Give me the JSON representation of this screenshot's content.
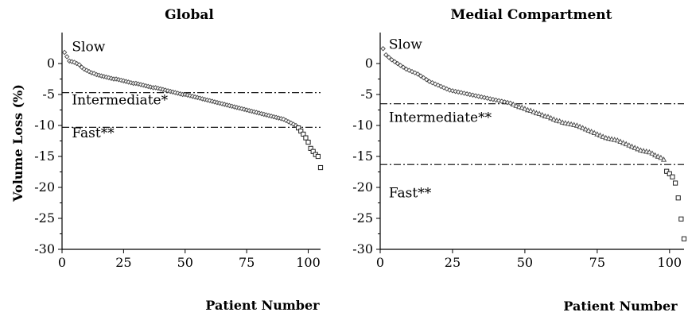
{
  "ylabel": "Volume Loss (%)",
  "chart_data": [
    {
      "type": "scatter",
      "title": "Global",
      "xlabel": "Patient Number",
      "ylabel": "Volume Loss (%)",
      "xlim": [
        0,
        105
      ],
      "ylim": [
        -30,
        5
      ],
      "xticks": [
        0,
        25,
        50,
        75,
        100
      ],
      "yticks": [
        0,
        -5,
        -10,
        -15,
        -20,
        -25,
        -30
      ],
      "thresholds": [
        -4.7,
        -10.3
      ],
      "region_labels": [
        {
          "text": "Slow",
          "x": 4,
          "y": 2
        },
        {
          "text": "Intermediate*",
          "x": 4,
          "y": -6.6
        },
        {
          "text": "Fast**",
          "x": 4,
          "y": -11.9
        }
      ],
      "series": [
        {
          "marker": "diamond",
          "x": [
            1,
            2,
            3,
            4,
            5,
            6,
            7,
            8,
            9,
            10,
            11,
            12,
            13,
            14,
            15,
            16,
            17,
            18,
            19,
            20,
            21,
            22,
            23,
            24,
            25,
            26,
            27,
            28,
            29,
            30,
            31,
            32,
            33,
            34,
            35,
            36,
            37,
            38,
            39,
            40,
            41,
            42,
            43,
            44,
            45,
            46,
            47,
            48,
            49,
            50,
            51,
            52,
            53,
            54,
            55,
            56,
            57,
            58,
            59,
            60,
            61,
            62,
            63,
            64,
            65,
            66,
            67,
            68,
            69,
            70,
            71,
            72,
            73,
            74,
            75,
            76,
            77,
            78,
            79,
            80,
            81,
            82,
            83,
            84,
            85,
            86,
            87,
            88,
            89,
            90,
            91,
            92,
            93,
            94,
            95
          ],
          "y": [
            1.8,
            1.1,
            0.4,
            0.3,
            0.2,
            0.0,
            -0.2,
            -0.6,
            -0.9,
            -1.1,
            -1.3,
            -1.5,
            -1.6,
            -1.8,
            -1.9,
            -2.0,
            -2.1,
            -2.2,
            -2.3,
            -2.4,
            -2.5,
            -2.5,
            -2.6,
            -2.7,
            -2.8,
            -2.9,
            -3.0,
            -3.1,
            -3.2,
            -3.2,
            -3.3,
            -3.4,
            -3.5,
            -3.6,
            -3.7,
            -3.8,
            -3.9,
            -3.9,
            -4.0,
            -4.1,
            -4.2,
            -4.3,
            -4.4,
            -4.5,
            -4.6,
            -4.7,
            -4.8,
            -4.9,
            -5.0,
            -5.0,
            -5.1,
            -5.2,
            -5.3,
            -5.4,
            -5.5,
            -5.6,
            -5.7,
            -5.8,
            -5.9,
            -6.0,
            -6.1,
            -6.2,
            -6.3,
            -6.4,
            -6.5,
            -6.6,
            -6.7,
            -6.8,
            -6.9,
            -7.0,
            -7.1,
            -7.2,
            -7.3,
            -7.4,
            -7.5,
            -7.6,
            -7.7,
            -7.8,
            -7.9,
            -8.0,
            -8.1,
            -8.2,
            -8.3,
            -8.4,
            -8.5,
            -8.6,
            -8.7,
            -8.8,
            -8.9,
            -9.0,
            -9.2,
            -9.4,
            -9.6,
            -9.8,
            -10.0
          ]
        },
        {
          "marker": "square",
          "x": [
            96,
            97,
            98,
            99,
            100,
            101,
            102,
            103,
            104,
            105
          ],
          "y": [
            -10.4,
            -10.9,
            -11.4,
            -12.0,
            -12.7,
            -13.7,
            -14.2,
            -14.7,
            -15.0,
            -16.8
          ]
        }
      ]
    },
    {
      "type": "scatter",
      "title": "Medial Compartment",
      "xlabel": "Patient Number",
      "ylabel": "",
      "xlim": [
        0,
        105
      ],
      "ylim": [
        -30,
        5
      ],
      "xticks": [
        0,
        25,
        50,
        75,
        100
      ],
      "yticks": [
        0,
        -5,
        -10,
        -15,
        -20,
        -25,
        -30
      ],
      "thresholds": [
        -6.5,
        -16.3
      ],
      "region_labels": [
        {
          "text": "Slow",
          "x": 3,
          "y": 2.4
        },
        {
          "text": "Intermediate**",
          "x": 3,
          "y": -9.4
        },
        {
          "text": "Fast**",
          "x": 3,
          "y": -21.6
        }
      ],
      "series": [
        {
          "marker": "diamond",
          "x": [
            1,
            2,
            3,
            4,
            5,
            6,
            7,
            8,
            9,
            10,
            11,
            12,
            13,
            14,
            15,
            16,
            17,
            18,
            19,
            20,
            21,
            22,
            23,
            24,
            25,
            26,
            27,
            28,
            29,
            30,
            31,
            32,
            33,
            34,
            35,
            36,
            37,
            38,
            39,
            40,
            41,
            42,
            43,
            44,
            45
          ],
          "y": [
            2.4,
            1.4,
            1.0,
            0.6,
            0.3,
            0.0,
            -0.3,
            -0.6,
            -0.9,
            -1.1,
            -1.3,
            -1.5,
            -1.7,
            -2.0,
            -2.3,
            -2.6,
            -2.9,
            -3.1,
            -3.3,
            -3.5,
            -3.7,
            -3.9,
            -4.1,
            -4.3,
            -4.4,
            -4.5,
            -4.6,
            -4.7,
            -4.8,
            -4.9,
            -5.0,
            -5.1,
            -5.2,
            -5.3,
            -5.4,
            -5.5,
            -5.6,
            -5.7,
            -5.8,
            -5.9,
            -6.0,
            -6.1,
            -6.2,
            -6.3,
            -6.4
          ]
        },
        {
          "marker": "triangle",
          "x": [
            46,
            47,
            48,
            49,
            50,
            51,
            52,
            53,
            54,
            55,
            56,
            57,
            58,
            59,
            60,
            61,
            62,
            63,
            64,
            65,
            66,
            67,
            68,
            69,
            70,
            71,
            72,
            73,
            74,
            75,
            76,
            77,
            78,
            79,
            80,
            81,
            82,
            83,
            84,
            85,
            86,
            87,
            88,
            89,
            90,
            91,
            92,
            93,
            94,
            95,
            96,
            97,
            98
          ],
          "y": [
            -6.6,
            -6.8,
            -7.0,
            -7.1,
            -7.3,
            -7.5,
            -7.6,
            -7.8,
            -8.0,
            -8.1,
            -8.3,
            -8.5,
            -8.6,
            -8.8,
            -9.0,
            -9.2,
            -9.3,
            -9.5,
            -9.6,
            -9.7,
            -9.8,
            -9.9,
            -10.0,
            -10.2,
            -10.4,
            -10.6,
            -10.8,
            -11.0,
            -11.2,
            -11.4,
            -11.6,
            -11.8,
            -12.0,
            -12.1,
            -12.2,
            -12.3,
            -12.4,
            -12.6,
            -12.8,
            -13.0,
            -13.2,
            -13.4,
            -13.6,
            -13.8,
            -14.0,
            -14.1,
            -14.2,
            -14.3,
            -14.5,
            -14.8,
            -15.0,
            -15.2,
            -15.5
          ]
        },
        {
          "marker": "square",
          "x": [
            99,
            100,
            101,
            102,
            103,
            104,
            105
          ],
          "y": [
            -17.4,
            -17.8,
            -18.3,
            -19.3,
            -21.7,
            -25.1,
            -28.3
          ]
        }
      ]
    }
  ]
}
